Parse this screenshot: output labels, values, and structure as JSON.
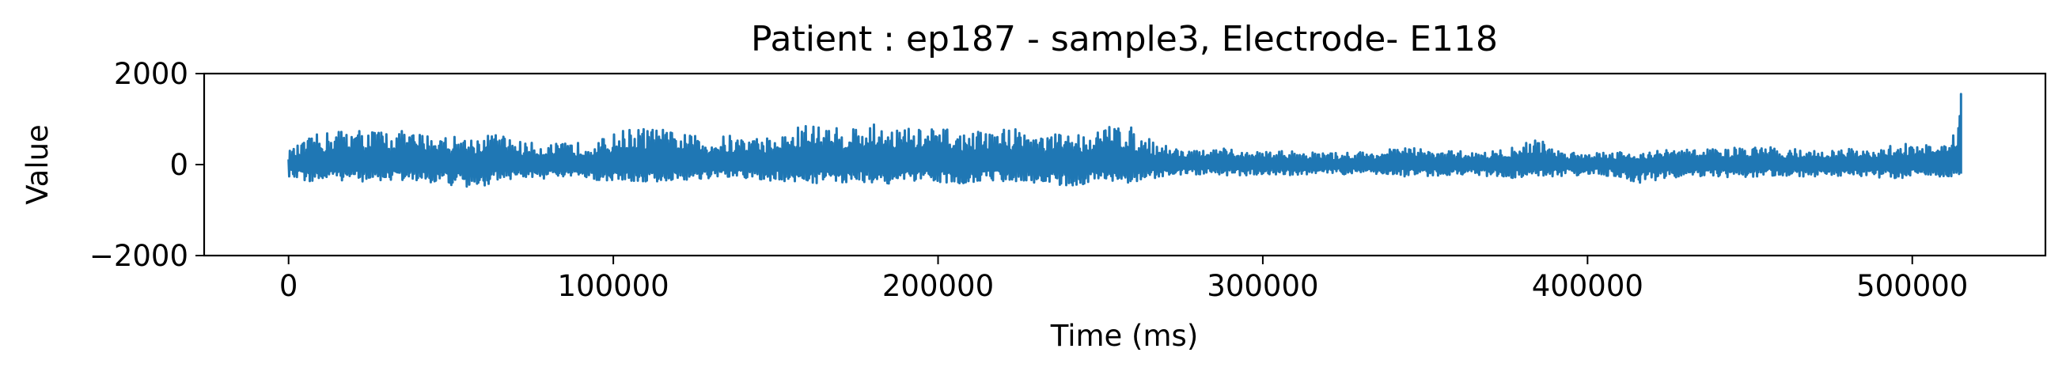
{
  "chart_data": {
    "type": "line",
    "title": "Patient : ep187 - sample3, Electrode- E118",
    "xlabel": "Time (ms)",
    "ylabel": "Value",
    "xlim": [
      -26000,
      541000
    ],
    "ylim": [
      -2000,
      2000
    ],
    "x_ticks": [
      0,
      100000,
      200000,
      300000,
      400000,
      500000
    ],
    "x_tick_labels": [
      "0",
      "100000",
      "200000",
      "300000",
      "400000",
      "500000"
    ],
    "y_ticks": [
      2000,
      0,
      -2000
    ],
    "y_tick_labels": [
      "2000",
      "0",
      "−2000"
    ],
    "grid": false,
    "legend": "none",
    "series": [
      {
        "color": "#1f77b4",
        "x": [
          0,
          8000,
          16000,
          24000,
          32000,
          40000,
          48000,
          56000,
          64000,
          72000,
          80000,
          88000,
          96000,
          104000,
          112000,
          120000,
          128000,
          136000,
          144000,
          152000,
          160000,
          168000,
          176000,
          184000,
          192000,
          200000,
          208000,
          216000,
          224000,
          232000,
          240000,
          248000,
          256000,
          264000,
          272000,
          280000,
          288000,
          296000,
          304000,
          312000,
          320000,
          328000,
          336000,
          344000,
          352000,
          360000,
          368000,
          376000,
          384000,
          392000,
          400000,
          408000,
          416000,
          424000,
          432000,
          440000,
          448000,
          456000,
          464000,
          472000,
          480000,
          488000,
          496000,
          504000,
          512000,
          515000
        ],
        "upper": [
          300,
          650,
          800,
          780,
          760,
          700,
          650,
          600,
          700,
          500,
          450,
          480,
          550,
          800,
          820,
          700,
          600,
          650,
          600,
          650,
          950,
          800,
          900,
          880,
          800,
          820,
          700,
          750,
          850,
          650,
          700,
          700,
          980,
          600,
          400,
          300,
          350,
          280,
          300,
          300,
          250,
          280,
          300,
          400,
          300,
          300,
          280,
          350,
          600,
          300,
          280,
          300,
          250,
          330,
          350,
          350,
          380,
          380,
          350,
          300,
          350,
          280,
          500,
          450,
          400,
          1550
        ],
        "lower": [
          -300,
          -400,
          -350,
          -380,
          -350,
          -380,
          -420,
          -600,
          -350,
          -300,
          -320,
          -300,
          -350,
          -380,
          -400,
          -350,
          -330,
          -300,
          -350,
          -380,
          -400,
          -420,
          -380,
          -430,
          -400,
          -380,
          -420,
          -350,
          -380,
          -400,
          -500,
          -380,
          -420,
          -350,
          -250,
          -220,
          -250,
          -230,
          -220,
          -250,
          -200,
          -220,
          -230,
          -260,
          -250,
          -220,
          -250,
          -300,
          -280,
          -250,
          -230,
          -250,
          -450,
          -300,
          -250,
          -280,
          -300,
          -250,
          -280,
          -250,
          -250,
          -280,
          -300,
          -280,
          -300,
          -200
        ]
      }
    ]
  }
}
